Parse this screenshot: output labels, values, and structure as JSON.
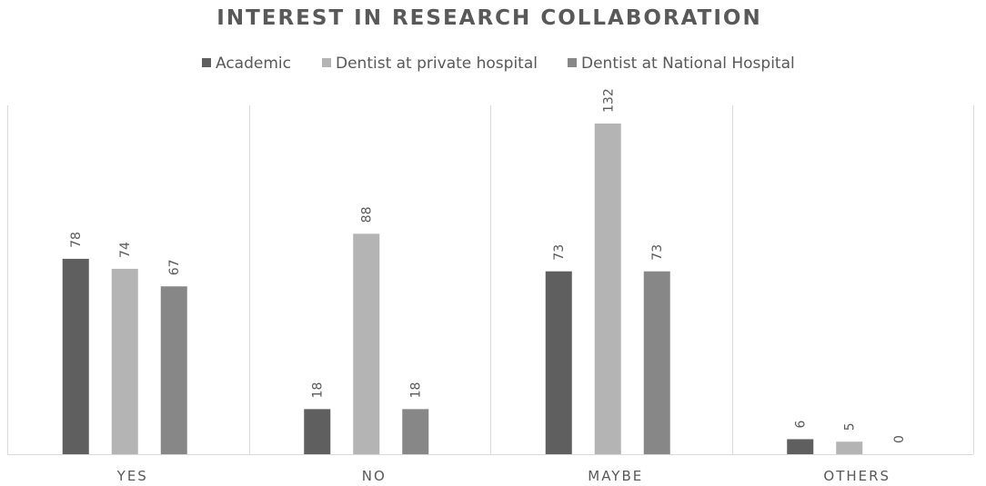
{
  "chart_data": {
    "type": "bar",
    "title": "INTEREST IN RESEARCH COLLABORATION",
    "xlabel": "",
    "ylabel": "",
    "categories": [
      "YES",
      "NO",
      "MAYBE",
      "OTHERS"
    ],
    "series": [
      {
        "name": "Academic",
        "values": [
          78,
          18,
          73,
          6
        ],
        "color": "#5f5f5f"
      },
      {
        "name": "Dentist at private hospital",
        "values": [
          74,
          88,
          132,
          5
        ],
        "color": "#b4b4b4"
      },
      {
        "name": "Dentist at National Hospital",
        "values": [
          67,
          18,
          73,
          0
        ],
        "color": "#878787"
      }
    ],
    "ylim": [
      0,
      150
    ],
    "grid": false,
    "legend_position": "top",
    "data_labels": true,
    "axis_color": "#d9d9d9",
    "text_color": "#595959"
  }
}
